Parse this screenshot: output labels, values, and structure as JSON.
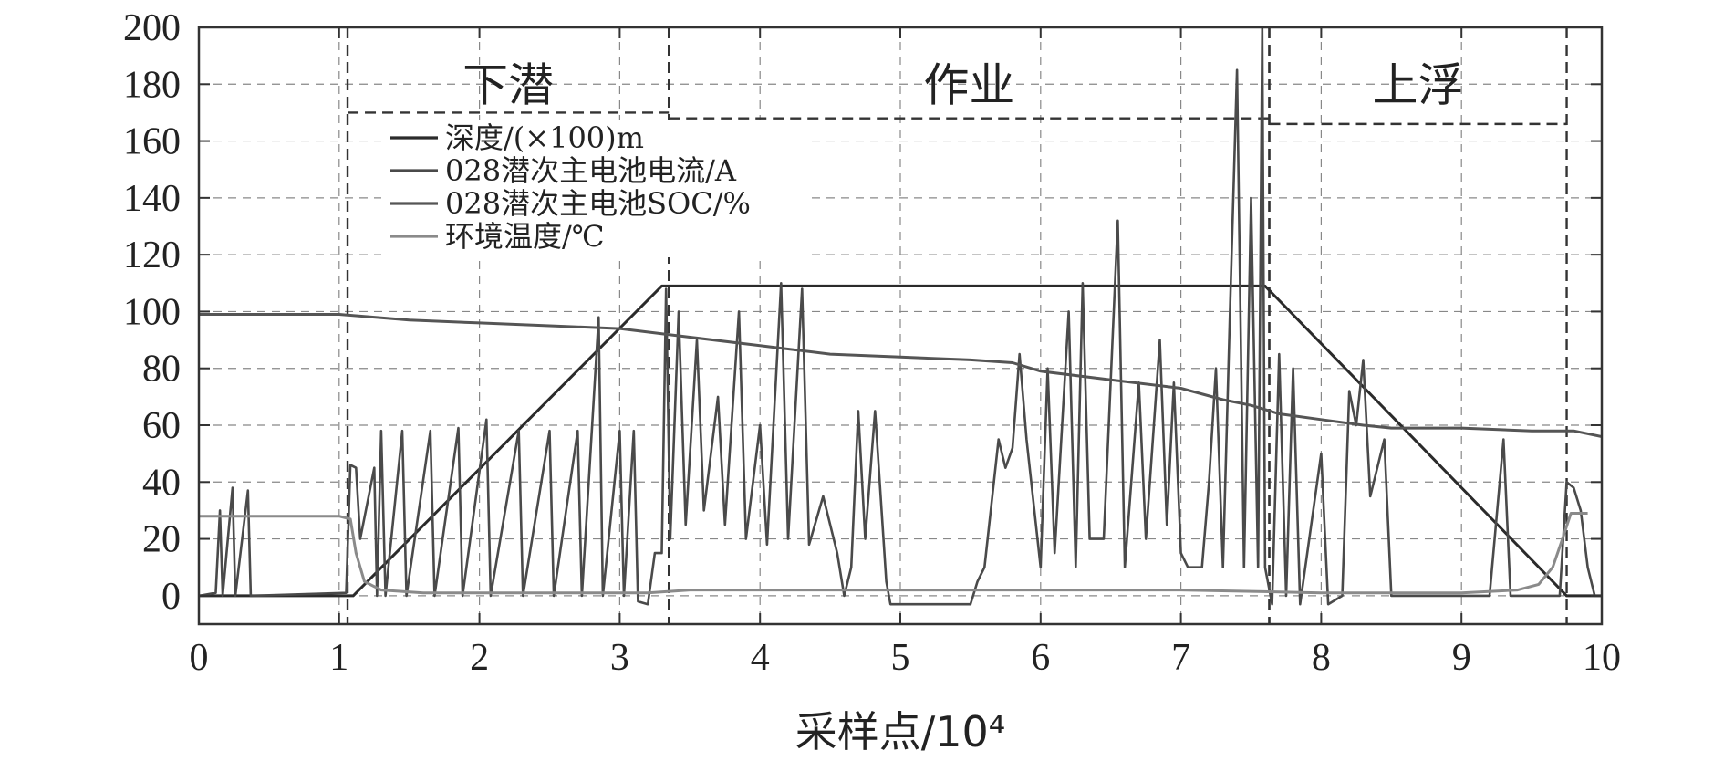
{
  "chart_data": {
    "type": "line",
    "title": "",
    "xlabel": "采样点/10⁴",
    "ylabel": "",
    "xlim": [
      0,
      10
    ],
    "ylim": [
      -10,
      200
    ],
    "xticks": [
      "0",
      "1",
      "2",
      "3",
      "4",
      "5",
      "6",
      "7",
      "8",
      "9",
      "10"
    ],
    "yticks": [
      "0",
      "20",
      "40",
      "60",
      "80",
      "100",
      "120",
      "140",
      "160",
      "180",
      "200"
    ],
    "grid": true,
    "legend_position": "top-left",
    "phases": [
      {
        "label": "下潜",
        "x_start": 1.06,
        "x_end": 3.35,
        "y_top": 170
      },
      {
        "label": "作业",
        "x_start": 3.35,
        "x_end": 7.63,
        "y_top": 168
      },
      {
        "label": "上浮",
        "x_start": 7.63,
        "x_end": 9.75,
        "y_top": 166
      }
    ],
    "series": [
      {
        "name": "深度/(×100)m",
        "color": "#2b2b2b",
        "points": [
          [
            0,
            0
          ],
          [
            1.1,
            0
          ],
          [
            3.3,
            109
          ],
          [
            7.6,
            109
          ],
          [
            9.75,
            0
          ],
          [
            10,
            0
          ]
        ]
      },
      {
        "name": "028潜次主电池电流/A",
        "color": "#4a4a4a",
        "points": [
          [
            0,
            0
          ],
          [
            0.12,
            1
          ],
          [
            0.15,
            30
          ],
          [
            0.17,
            0
          ],
          [
            0.24,
            38
          ],
          [
            0.26,
            0
          ],
          [
            0.35,
            37
          ],
          [
            0.37,
            0
          ],
          [
            1.05,
            1
          ],
          [
            1.08,
            46
          ],
          [
            1.12,
            45
          ],
          [
            1.15,
            20
          ],
          [
            1.25,
            45
          ],
          [
            1.27,
            0
          ],
          [
            1.3,
            58
          ],
          [
            1.33,
            0
          ],
          [
            1.45,
            58
          ],
          [
            1.48,
            0
          ],
          [
            1.65,
            58
          ],
          [
            1.68,
            0
          ],
          [
            1.85,
            59
          ],
          [
            1.88,
            0
          ],
          [
            2.05,
            62
          ],
          [
            2.08,
            0
          ],
          [
            2.28,
            58
          ],
          [
            2.31,
            0
          ],
          [
            2.5,
            58
          ],
          [
            2.53,
            0
          ],
          [
            2.7,
            58
          ],
          [
            2.73,
            0
          ],
          [
            2.85,
            98
          ],
          [
            2.88,
            0
          ],
          [
            3.0,
            58
          ],
          [
            3.03,
            0
          ],
          [
            3.1,
            58
          ],
          [
            3.13,
            -2
          ],
          [
            3.2,
            -3
          ],
          [
            3.25,
            15
          ],
          [
            3.3,
            15
          ],
          [
            3.33,
            108
          ],
          [
            3.36,
            20
          ],
          [
            3.42,
            100
          ],
          [
            3.47,
            25
          ],
          [
            3.55,
            90
          ],
          [
            3.6,
            30
          ],
          [
            3.7,
            70
          ],
          [
            3.75,
            25
          ],
          [
            3.85,
            100
          ],
          [
            3.9,
            20
          ],
          [
            4.0,
            60
          ],
          [
            4.05,
            18
          ],
          [
            4.15,
            110
          ],
          [
            4.2,
            20
          ],
          [
            4.3,
            108
          ],
          [
            4.35,
            18
          ],
          [
            4.45,
            35
          ],
          [
            4.55,
            15
          ],
          [
            4.6,
            0
          ],
          [
            4.65,
            10
          ],
          [
            4.7,
            65
          ],
          [
            4.75,
            20
          ],
          [
            4.82,
            65
          ],
          [
            4.9,
            5
          ],
          [
            4.93,
            -3
          ],
          [
            5.5,
            -3
          ],
          [
            5.55,
            5
          ],
          [
            5.6,
            10
          ],
          [
            5.7,
            55
          ],
          [
            5.75,
            45
          ],
          [
            5.8,
            52
          ],
          [
            5.85,
            85
          ],
          [
            5.9,
            55
          ],
          [
            6.0,
            10
          ],
          [
            6.05,
            80
          ],
          [
            6.1,
            15
          ],
          [
            6.2,
            100
          ],
          [
            6.25,
            10
          ],
          [
            6.3,
            110
          ],
          [
            6.35,
            20
          ],
          [
            6.45,
            20
          ],
          [
            6.55,
            132
          ],
          [
            6.6,
            10
          ],
          [
            6.7,
            75
          ],
          [
            6.75,
            20
          ],
          [
            6.85,
            90
          ],
          [
            6.9,
            25
          ],
          [
            6.95,
            75
          ],
          [
            7.0,
            15
          ],
          [
            7.05,
            10
          ],
          [
            7.15,
            10
          ],
          [
            7.2,
            40
          ],
          [
            7.25,
            80
          ],
          [
            7.3,
            10
          ],
          [
            7.35,
            100
          ],
          [
            7.4,
            185
          ],
          [
            7.45,
            10
          ],
          [
            7.5,
            140
          ],
          [
            7.55,
            10
          ],
          [
            7.58,
            200
          ],
          [
            7.6,
            10
          ],
          [
            7.65,
            -3
          ],
          [
            7.7,
            85
          ],
          [
            7.75,
            0
          ],
          [
            7.8,
            80
          ],
          [
            7.85,
            -3
          ],
          [
            8.0,
            50
          ],
          [
            8.05,
            -3
          ],
          [
            8.15,
            0
          ],
          [
            8.2,
            72
          ],
          [
            8.25,
            60
          ],
          [
            8.3,
            83
          ],
          [
            8.35,
            35
          ],
          [
            8.45,
            55
          ],
          [
            8.5,
            0
          ],
          [
            9.2,
            0
          ],
          [
            9.3,
            55
          ],
          [
            9.35,
            0
          ],
          [
            9.7,
            0
          ],
          [
            9.75,
            40
          ],
          [
            9.8,
            38
          ],
          [
            9.85,
            30
          ],
          [
            9.9,
            10
          ],
          [
            9.95,
            0
          ],
          [
            10.0,
            0
          ]
        ]
      },
      {
        "name": "028潜次主电池SOC/%",
        "color": "#555555",
        "points": [
          [
            0,
            99
          ],
          [
            1.0,
            99
          ],
          [
            1.5,
            97
          ],
          [
            2.0,
            96
          ],
          [
            2.5,
            95
          ],
          [
            3.0,
            94
          ],
          [
            3.5,
            91
          ],
          [
            4.0,
            88
          ],
          [
            4.5,
            85
          ],
          [
            5.0,
            84
          ],
          [
            5.5,
            83
          ],
          [
            5.8,
            82
          ],
          [
            6.0,
            79
          ],
          [
            6.5,
            76
          ],
          [
            7.0,
            73
          ],
          [
            7.3,
            69
          ],
          [
            7.5,
            67
          ],
          [
            7.7,
            64
          ],
          [
            8.0,
            62
          ],
          [
            8.3,
            60
          ],
          [
            8.5,
            59
          ],
          [
            9.0,
            59
          ],
          [
            9.5,
            58
          ],
          [
            9.8,
            58
          ],
          [
            10.0,
            56
          ]
        ]
      },
      {
        "name": "环境温度/℃",
        "color": "#8a8a8a",
        "points": [
          [
            0,
            28
          ],
          [
            1.0,
            28
          ],
          [
            1.08,
            27
          ],
          [
            1.12,
            15
          ],
          [
            1.18,
            5
          ],
          [
            1.3,
            2
          ],
          [
            1.6,
            1
          ],
          [
            2.5,
            1
          ],
          [
            3.2,
            1
          ],
          [
            3.5,
            2
          ],
          [
            5.0,
            2
          ],
          [
            7.0,
            2
          ],
          [
            8.0,
            1
          ],
          [
            9.0,
            1
          ],
          [
            9.4,
            2
          ],
          [
            9.55,
            4
          ],
          [
            9.65,
            10
          ],
          [
            9.72,
            20
          ],
          [
            9.78,
            29
          ],
          [
            9.9,
            29
          ]
        ]
      }
    ]
  }
}
